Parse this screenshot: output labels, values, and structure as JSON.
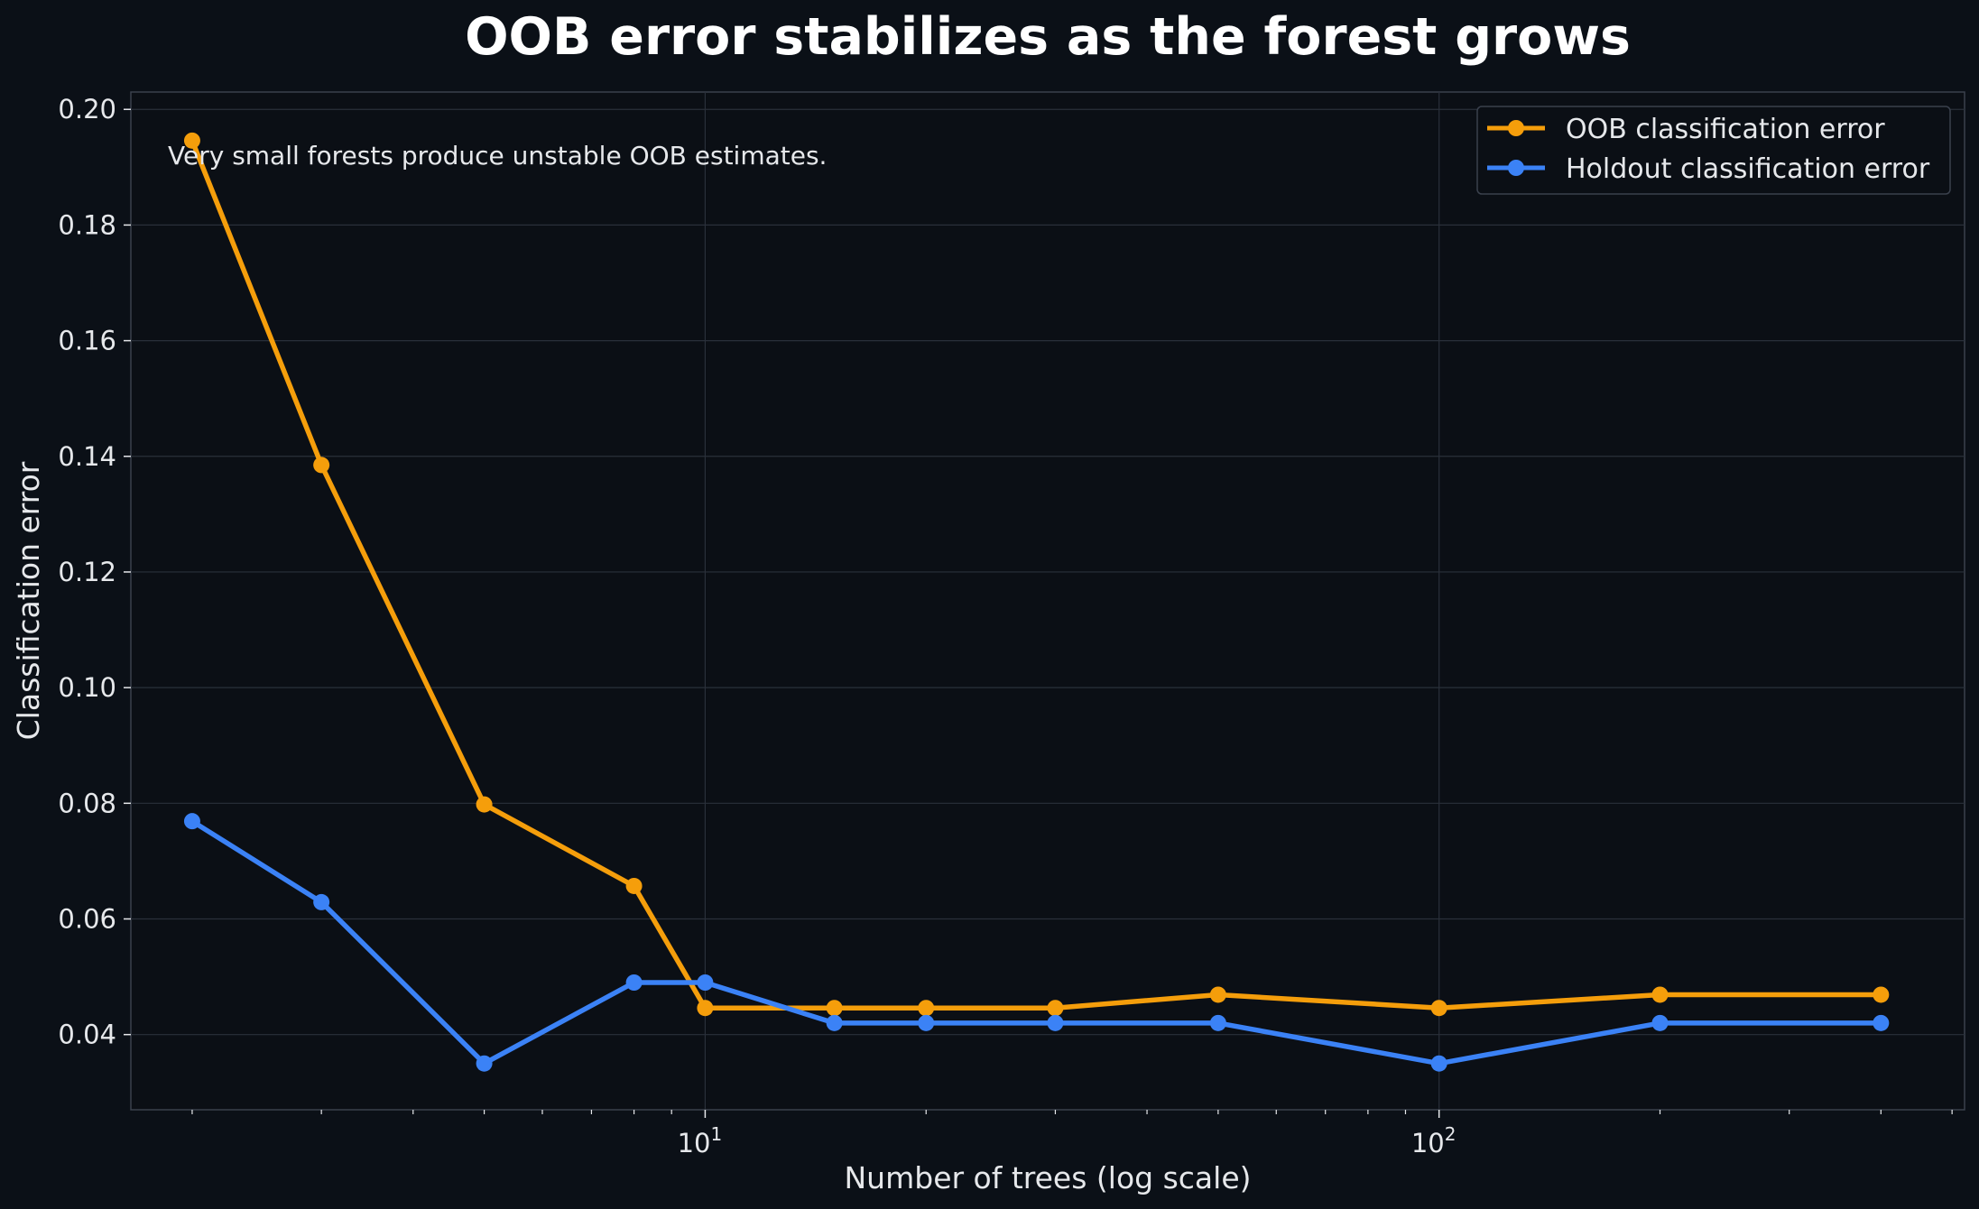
{
  "chart_data": {
    "type": "line",
    "title": "OOB error stabilizes as the forest grows",
    "xlabel": "Number of trees (log scale)",
    "ylabel": "Classification error",
    "x_scale": "log",
    "x_ticks": [
      {
        "value": 10,
        "base": "10",
        "exp": "1"
      },
      {
        "value": 100,
        "base": "10",
        "exp": "2"
      }
    ],
    "y_ticks": [
      "0.04",
      "0.06",
      "0.08",
      "0.10",
      "0.12",
      "0.14",
      "0.16",
      "0.18",
      "0.20"
    ],
    "xlim": [
      1.65,
      520
    ],
    "ylim": [
      0.027,
      0.203
    ],
    "grid": true,
    "legend_position": "top-right",
    "annotation": "Very small forests produce unstable OOB estimates.",
    "x": [
      2,
      3,
      5,
      8,
      10,
      15,
      20,
      30,
      50,
      100,
      200,
      400
    ],
    "series": [
      {
        "name": "OOB classification error",
        "color": "#f59e0b",
        "values": [
          0.1946,
          0.1385,
          0.0798,
          0.0657,
          0.0446,
          0.0446,
          0.0446,
          0.0446,
          0.0469,
          0.0446,
          0.0469,
          0.0469
        ]
      },
      {
        "name": "Holdout classification error",
        "color": "#3b82f6",
        "values": [
          0.0769,
          0.0629,
          0.035,
          0.049,
          0.049,
          0.042,
          0.042,
          0.042,
          0.042,
          0.035,
          0.042,
          0.042
        ]
      }
    ]
  }
}
